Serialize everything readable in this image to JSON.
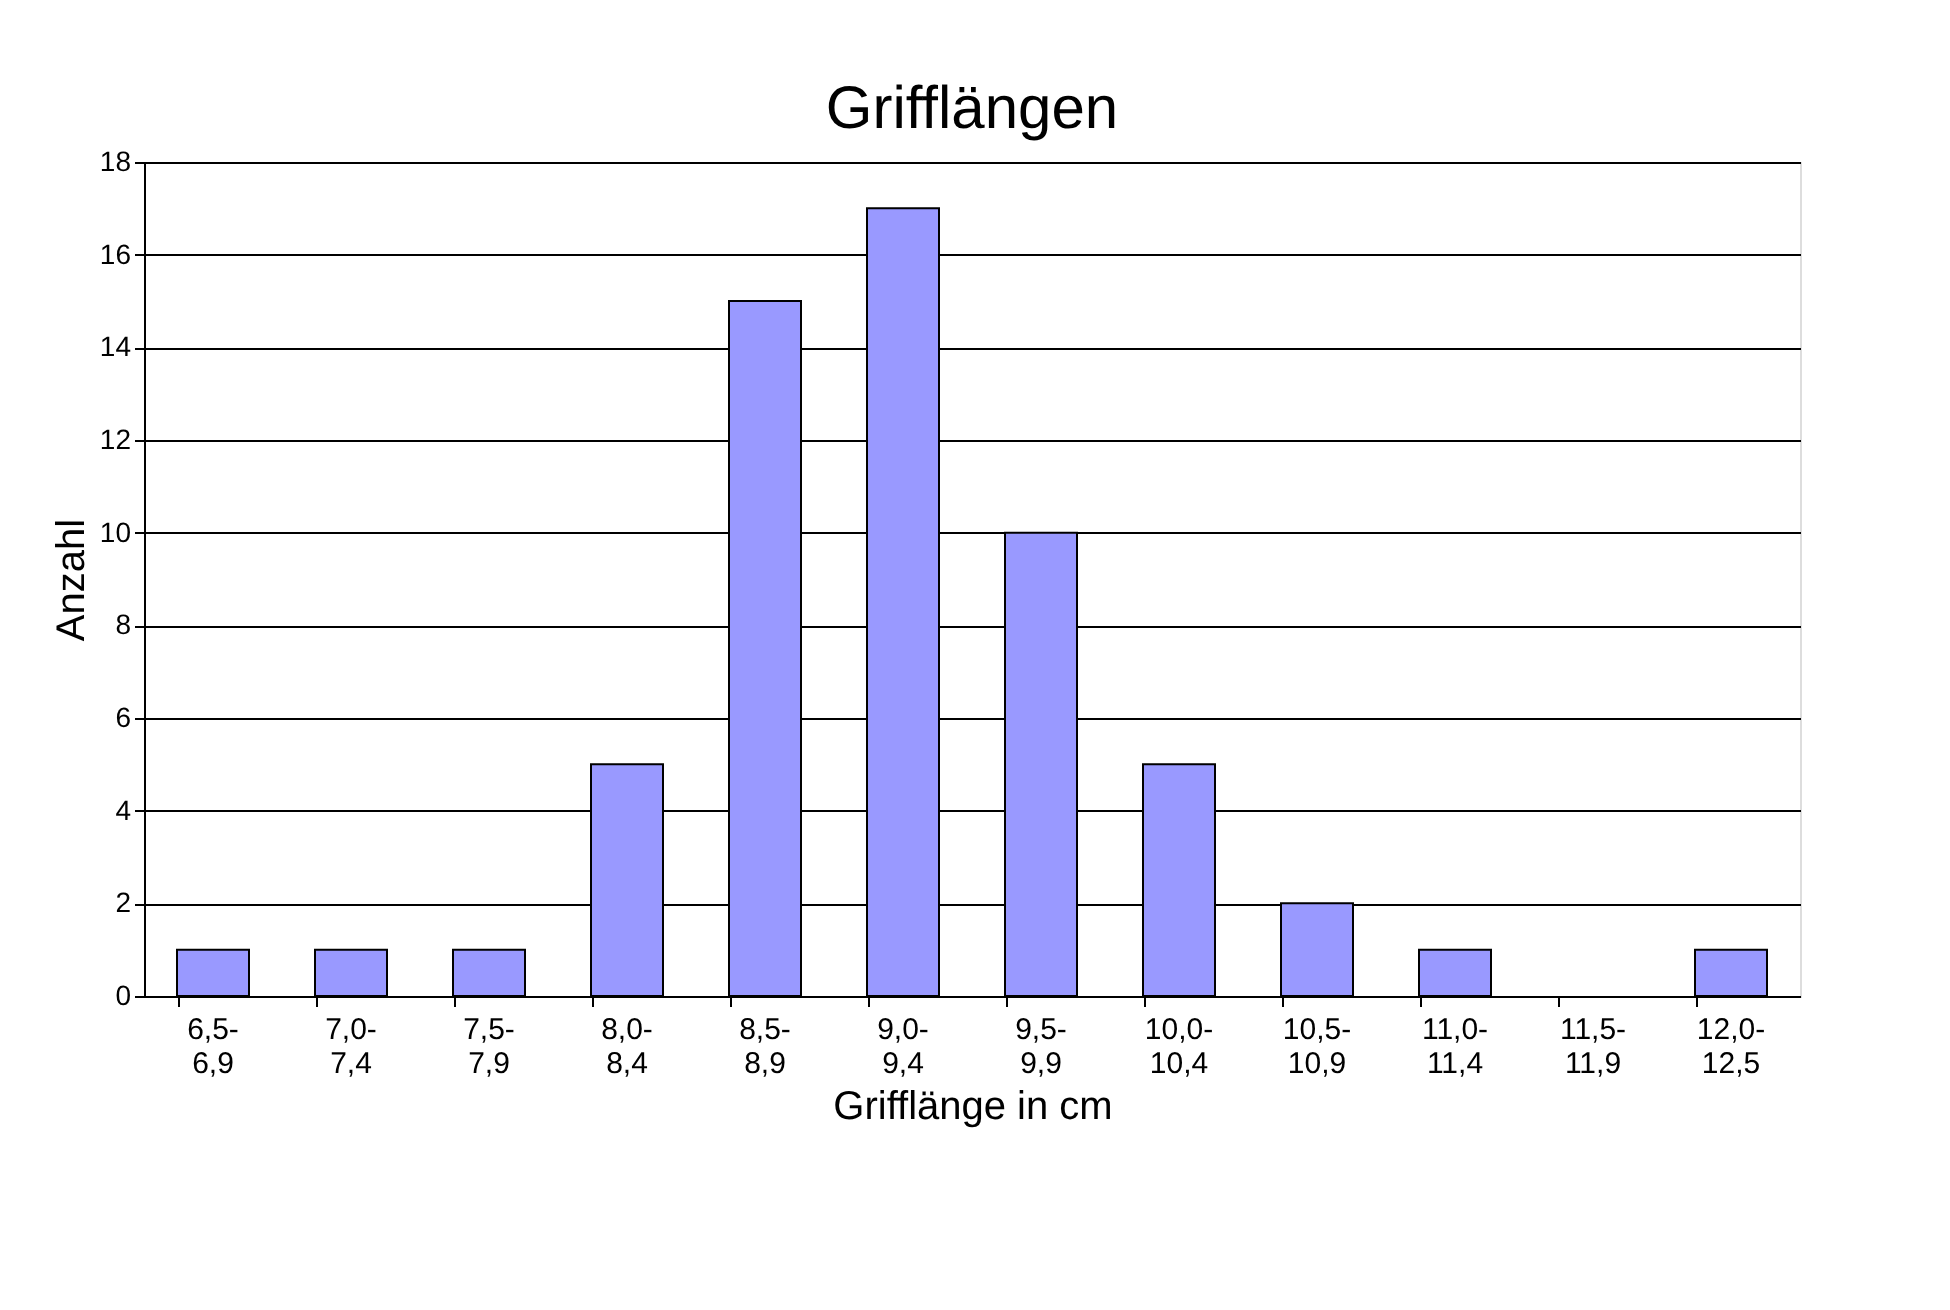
{
  "chart_data": {
    "type": "bar",
    "title": "Grifflängen",
    "xlabel": "Grifflänge in cm",
    "ylabel": "Anzahl",
    "categories": [
      "6,5-6,9",
      "7,0-7,4",
      "7,5-7,9",
      "8,0-8,4",
      "8,5-8,9",
      "9,0-9,4",
      "9,5-9,9",
      "10,0-10,4",
      "10,5-10,9",
      "11,0-11,4",
      "11,5-11,9",
      "12,0-12,5"
    ],
    "values": [
      1,
      1,
      1,
      5,
      15,
      17,
      10,
      5,
      2,
      1,
      0,
      1
    ],
    "color": "#9999ff",
    "ylim": [
      0,
      18
    ],
    "yticks": [
      0,
      2,
      4,
      6,
      8,
      10,
      12,
      14,
      16,
      18
    ],
    "grid": "y"
  }
}
